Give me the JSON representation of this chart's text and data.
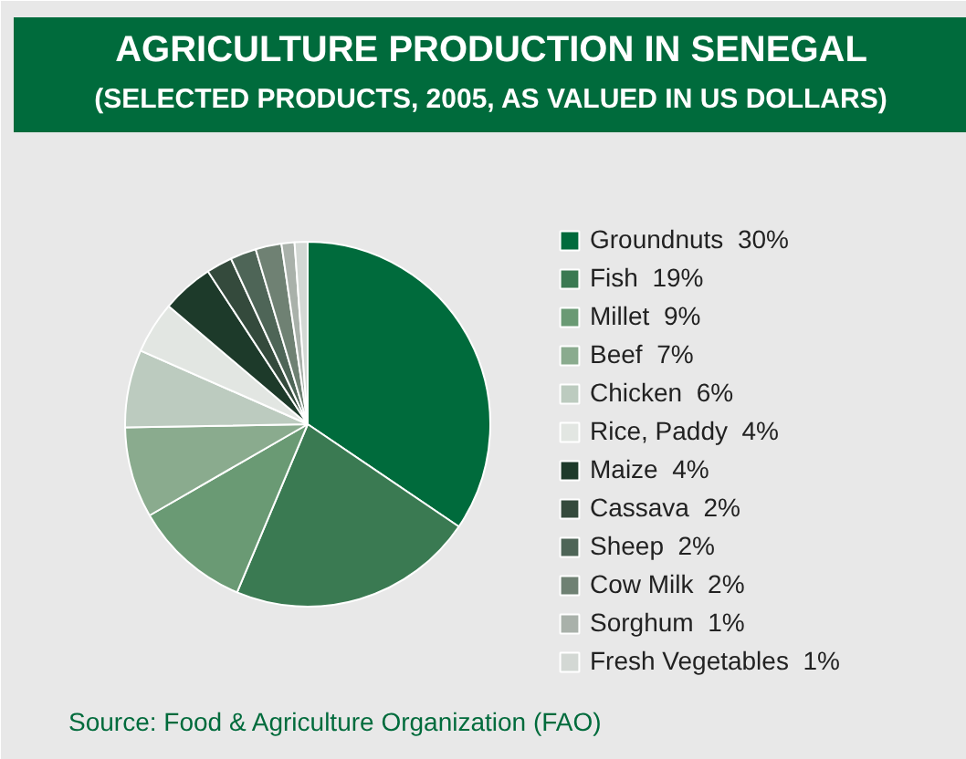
{
  "chart_data": {
    "type": "pie",
    "title": "AGRICULTURE PRODUCTION IN SENEGAL",
    "subtitle": "(SELECTED PRODUCTS, 2005, AS VALUED IN US DOLLARS)",
    "categories": [
      "Groundnuts  30%",
      "Fish  19%",
      "Millet  9%",
      "Beef  7%",
      "Chicken  6%",
      "Rice, Paddy  4%",
      "Maize  4%",
      "Cassava  2%",
      "Sheep  2%",
      "Cow Milk  2%",
      "Sorghum  1%",
      "Fresh Vegetables  1%"
    ],
    "values": [
      30,
      19,
      9,
      7,
      6,
      4,
      4,
      2,
      2,
      2,
      1,
      1
    ],
    "colors": [
      "#006b3c",
      "#3a7a52",
      "#6a9a74",
      "#8aab8e",
      "#bccbbf",
      "#e2e6e2",
      "#1d3a2a",
      "#344a3c",
      "#4e6557",
      "#6f8173",
      "#a9b1aa",
      "#d3d8d4"
    ],
    "legend": "right",
    "annotations": [
      "Source: Food & Agriculture Organization (FAO)"
    ]
  }
}
